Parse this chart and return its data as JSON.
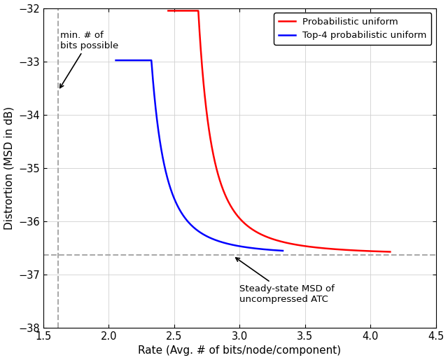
{
  "title": "",
  "xlabel": "Rate (Avg. # of bits/node/component)",
  "ylabel": "Distrortion (MSD in dB)",
  "xlim": [
    1.5,
    4.5
  ],
  "ylim": [
    -38,
    -32
  ],
  "xticks": [
    1.5,
    2.0,
    2.5,
    3.0,
    3.5,
    4.0,
    4.5
  ],
  "yticks": [
    -38,
    -37,
    -36,
    -35,
    -34,
    -33,
    -32
  ],
  "red_color": "#ff0000",
  "blue_color": "#0000ff",
  "dashed_color": "#aaaaaa",
  "asymptote_y": -36.63,
  "vline_x": 1.615,
  "red_x_start": 2.455,
  "blue_x_start": 2.055,
  "red_x_end": 4.15,
  "blue_x_end": 3.33,
  "red_A": 0.18,
  "red_k": 2.2,
  "blue_A": 0.14,
  "blue_k": 2.5,
  "red_label": "Probabilistic uniform",
  "blue_label": "Top-4 probabilistic uniform",
  "annotation_bits_text": "min. # of\nbits possible",
  "annotation_atc_text": "Steady-state MSD of\nuncompressed ATC",
  "linewidth": 1.8,
  "font_size": 11
}
